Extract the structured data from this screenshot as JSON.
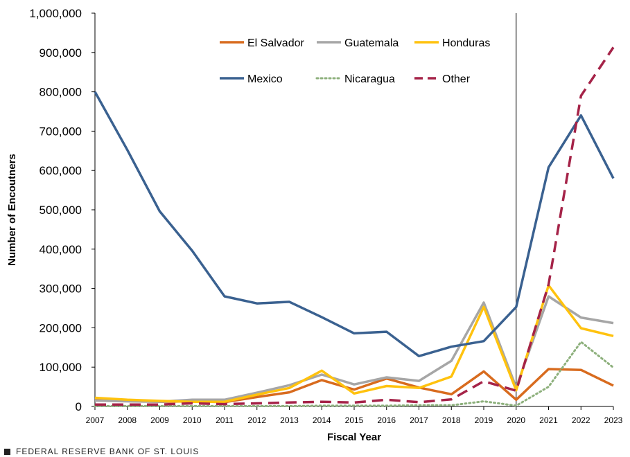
{
  "chart_data": {
    "type": "line",
    "title": "",
    "xlabel": "Fiscal Year",
    "ylabel": "Number of Encoutners",
    "ylim": [
      0,
      1000000
    ],
    "y_ticks": [
      0,
      100000,
      200000,
      300000,
      400000,
      500000,
      600000,
      700000,
      800000,
      900000,
      1000000
    ],
    "y_tick_labels": [
      "0",
      "100,000",
      "200,000",
      "300,000",
      "400,000",
      "500,000",
      "600,000",
      "700,000",
      "800,000",
      "900,000",
      "1,000,000"
    ],
    "x": [
      "2007",
      "2008",
      "2009",
      "2010",
      "2011",
      "2012",
      "2013",
      "2014",
      "2015",
      "2016",
      "2017",
      "2018",
      "2019",
      "2020",
      "2021",
      "2022",
      "2023"
    ],
    "vertical_marker_at": "2020",
    "legend_placement": "top-center",
    "series": [
      {
        "name": "El Salvador",
        "color": "#D86B1E",
        "style": "solid",
        "values": [
          18000,
          14000,
          12000,
          13000,
          11000,
          24000,
          36000,
          67000,
          43000,
          71000,
          48000,
          31000,
          89000,
          17000,
          95000,
          93000,
          53000
        ]
      },
      {
        "name": "Guatemala",
        "color": "#A6A6A6",
        "style": "solid",
        "values": [
          15000,
          13000,
          12000,
          17000,
          17000,
          35000,
          54000,
          81000,
          56000,
          74000,
          65000,
          116000,
          264000,
          48000,
          280000,
          226000,
          212000
        ]
      },
      {
        "name": "Honduras",
        "color": "#FFC20E",
        "style": "solid",
        "values": [
          22000,
          17000,
          14000,
          12000,
          12000,
          30000,
          47000,
          91000,
          33000,
          52000,
          47000,
          76000,
          253000,
          41000,
          308000,
          199000,
          179000
        ]
      },
      {
        "name": "Mexico",
        "color": "#3A6190",
        "style": "solid",
        "values": [
          800000,
          652000,
          496000,
          396000,
          280000,
          262000,
          266000,
          227000,
          186000,
          190000,
          128000,
          152000,
          166000,
          253000,
          608000,
          740000,
          580000
        ]
      },
      {
        "name": "Nicaragua",
        "color": "#8DB07C",
        "style": "dotted",
        "values": [
          1000,
          1000,
          1000,
          1000,
          1000,
          1000,
          1000,
          2000,
          2000,
          2000,
          3000,
          3000,
          13000,
          2000,
          50000,
          164000,
          99000
        ]
      },
      {
        "name": "Other",
        "color": "#A52348",
        "style": "dashed",
        "values": [
          5000,
          5000,
          5000,
          8000,
          6000,
          8000,
          10000,
          12000,
          10000,
          17000,
          11000,
          18000,
          64000,
          40000,
          310000,
          790000,
          913000
        ]
      }
    ]
  },
  "footer": {
    "source_label": "FEDERAL RESERVE BANK OF ST. LOUIS"
  }
}
